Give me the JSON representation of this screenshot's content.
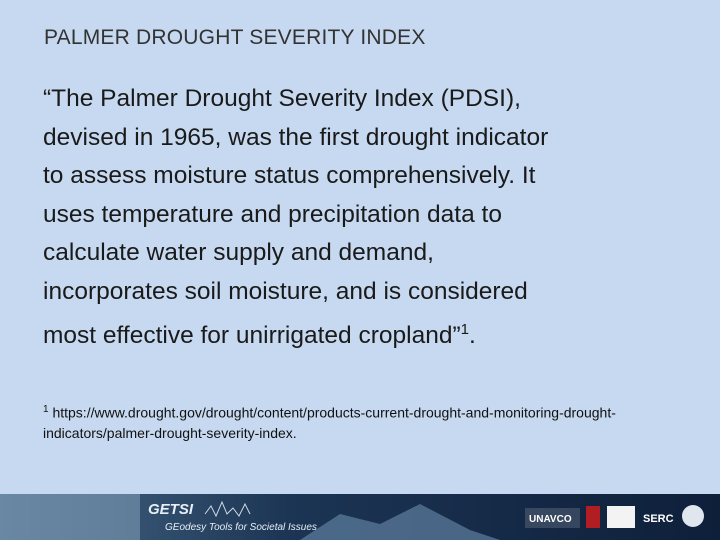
{
  "header": {
    "title": "PALMER DROUGHT SEVERITY INDEX"
  },
  "body": {
    "lines": [
      "“The Palmer Drought Severity Index (PDSI),",
      "devised in 1965, was the first drought indicator",
      "to assess moisture status comprehensively. It",
      "uses temperature and precipitation data to",
      "calculate water supply and demand,",
      "incorporates soil moisture, and is considered",
      "most effective for unirrigated cropland”"
    ],
    "superscript": "1",
    "end": "."
  },
  "footnote": {
    "marker": "1",
    "text": "https://www.drought.gov/drought/content/products-current-drought-and-monitoring-drought-indicators/palmer-drought-severity-index."
  },
  "footer": {
    "logo": "GETSI",
    "tagline": "GEodesy Tools for Societal Issues",
    "partner1": "UNAVCO",
    "partner2": "SERC"
  }
}
